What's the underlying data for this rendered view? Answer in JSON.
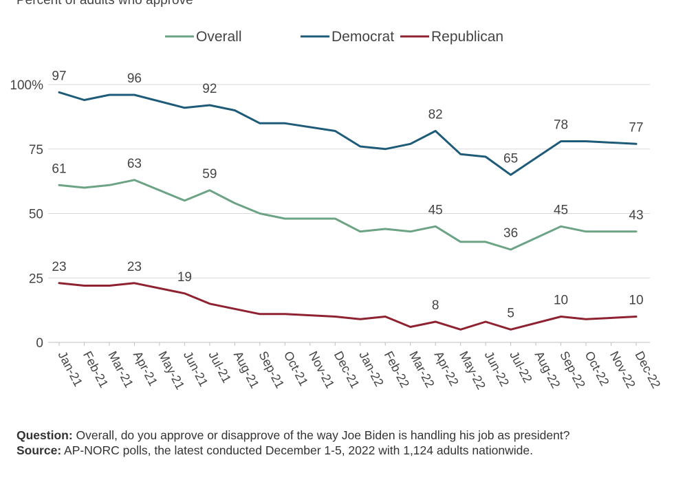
{
  "subtitle": "Percent of adults who approve",
  "footnote": {
    "question_label": "Question:",
    "question_text": " Overall, do you approve or disapprove of the way Joe Biden is handling his job as president?",
    "source_label": "Source:",
    "source_text": " AP-NORC polls, the latest conducted December 1-5, 2022 with 1,124 adults nationwide."
  },
  "chart_data": {
    "type": "line",
    "categories": [
      "Jan-21",
      "Feb-21",
      "Mar-21",
      "Apr-21",
      "May-21",
      "Jun-21",
      "Jul-21",
      "Aug-21",
      "Sep-21",
      "Oct-21",
      "Nov-21",
      "Dec-21",
      "Jan-22",
      "Feb-22",
      "Mar-22",
      "Apr-22",
      "May-22",
      "Jun-22",
      "Jul-22",
      "Aug-22",
      "Sep-22",
      "Oct-22",
      "Nov-22",
      "Dec-22"
    ],
    "y_tick_labels": [
      "0",
      "25",
      "50",
      "75",
      "100%"
    ],
    "y_ticks": [
      0,
      25,
      50,
      75,
      100
    ],
    "ylim": [
      0,
      100
    ],
    "legend_position": "top",
    "grid": true,
    "series": [
      {
        "name": "Overall",
        "color": "#6ba384",
        "points": [
          [
            0,
            61
          ],
          [
            1,
            60
          ],
          [
            2,
            61
          ],
          [
            3,
            63
          ],
          [
            5,
            55
          ],
          [
            6,
            59
          ],
          [
            7,
            54
          ],
          [
            8,
            50
          ],
          [
            9,
            48
          ],
          [
            11,
            48
          ],
          [
            12,
            43
          ],
          [
            13,
            44
          ],
          [
            14,
            43
          ],
          [
            15,
            45
          ],
          [
            16,
            39
          ],
          [
            17,
            39
          ],
          [
            18,
            36
          ],
          [
            20,
            45
          ],
          [
            21,
            43
          ],
          [
            23,
            43
          ]
        ],
        "labels": [
          {
            "i": 0,
            "text": "61"
          },
          {
            "i": 3,
            "text": "63"
          },
          {
            "i": 6,
            "text": "59"
          },
          {
            "i": 15,
            "text": "45"
          },
          {
            "i": 18,
            "text": "36"
          },
          {
            "i": 20,
            "text": "45"
          },
          {
            "i": 23,
            "text": "43"
          }
        ]
      },
      {
        "name": "Democrat",
        "color": "#1e5b78",
        "points": [
          [
            0,
            97
          ],
          [
            1,
            94
          ],
          [
            2,
            96
          ],
          [
            3,
            96
          ],
          [
            5,
            91
          ],
          [
            6,
            92
          ],
          [
            7,
            90
          ],
          [
            8,
            85
          ],
          [
            9,
            85
          ],
          [
            11,
            82
          ],
          [
            12,
            76
          ],
          [
            13,
            75
          ],
          [
            14,
            77
          ],
          [
            15,
            82
          ],
          [
            16,
            73
          ],
          [
            17,
            72
          ],
          [
            18,
            65
          ],
          [
            20,
            78
          ],
          [
            21,
            78
          ],
          [
            23,
            77
          ]
        ],
        "labels": [
          {
            "i": 0,
            "text": "97"
          },
          {
            "i": 3,
            "text": "96"
          },
          {
            "i": 6,
            "text": "92"
          },
          {
            "i": 15,
            "text": "82"
          },
          {
            "i": 18,
            "text": "65"
          },
          {
            "i": 20,
            "text": "78"
          },
          {
            "i": 23,
            "text": "77"
          }
        ]
      },
      {
        "name": "Republican",
        "color": "#8e2230",
        "points": [
          [
            0,
            23
          ],
          [
            1,
            22
          ],
          [
            2,
            22
          ],
          [
            3,
            23
          ],
          [
            5,
            19
          ],
          [
            6,
            15
          ],
          [
            7,
            13
          ],
          [
            8,
            11
          ],
          [
            9,
            11
          ],
          [
            11,
            10
          ],
          [
            12,
            9
          ],
          [
            13,
            10
          ],
          [
            14,
            6
          ],
          [
            15,
            8
          ],
          [
            16,
            5
          ],
          [
            17,
            8
          ],
          [
            18,
            5
          ],
          [
            20,
            10
          ],
          [
            21,
            9
          ],
          [
            23,
            10
          ]
        ],
        "labels": [
          {
            "i": 0,
            "text": "23"
          },
          {
            "i": 3,
            "text": "23"
          },
          {
            "i": 5,
            "text": "19"
          },
          {
            "i": 15,
            "text": "8"
          },
          {
            "i": 18,
            "text": "5"
          },
          {
            "i": 20,
            "text": "10"
          },
          {
            "i": 23,
            "text": "10"
          }
        ]
      }
    ]
  }
}
